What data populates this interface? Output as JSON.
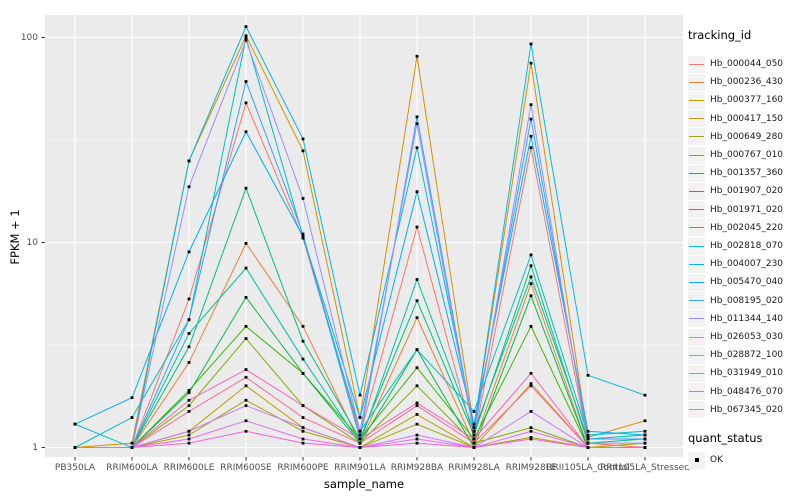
{
  "chart_data": {
    "type": "line",
    "title": "",
    "xlabel": "sample_name",
    "ylabel": "FPKM + 1",
    "y_scale": "log10",
    "y_ticks": [
      "1",
      "10",
      "100"
    ],
    "y_tick_values": [
      1,
      10,
      100
    ],
    "y_minor_values": [
      3.1623,
      31.623
    ],
    "ylim": [
      0.9,
      130
    ],
    "grid": true,
    "legend_position": "right",
    "panel_bg": "#ebebeb",
    "grid_color": "#ffffff",
    "point_color": "#000000",
    "categories": [
      "PB350LA",
      "RRIM600LA",
      "RRIM600LE",
      "RRIM600SE",
      "RRIM600PE",
      "RRIM901LA",
      "RRIM928BA",
      "RRIM928LA",
      "RRIM928LE",
      "RRII105LA_Control",
      "RRII105LA_Stressed"
    ],
    "legend_title": "tracking_id",
    "legend2_title": "quant_status",
    "quant_status_label": "OK",
    "series": [
      {
        "name": "Hb_000044_050",
        "color": "#F8766D",
        "values": [
          1.0,
          1.0,
          5.3,
          48,
          10.5,
          1.15,
          11.9,
          1.1,
          29,
          1.05,
          1.0
        ]
      },
      {
        "name": "Hb_000236_430",
        "color": "#EA8331",
        "values": [
          1.0,
          1.0,
          2.6,
          9.9,
          3.9,
          1.05,
          4.3,
          1.05,
          6.3,
          1.0,
          1.0
        ]
      },
      {
        "name": "Hb_000377_160",
        "color": "#D89000",
        "values": [
          1.0,
          1.05,
          25,
          102,
          28,
          1.4,
          81,
          1.25,
          75,
          1.12,
          1.35
        ]
      },
      {
        "name": "Hb_000417_150",
        "color": "#C09B00",
        "values": [
          1.0,
          1.0,
          1.2,
          2.0,
          1.25,
          1.0,
          1.45,
          1.0,
          2.05,
          1.0,
          1.05
        ]
      },
      {
        "name": "Hb_000649_280",
        "color": "#A3A500",
        "values": [
          1.0,
          1.0,
          1.15,
          1.7,
          1.2,
          1.0,
          1.3,
          1.0,
          1.12,
          1.0,
          1.0
        ]
      },
      {
        "name": "Hb_000767_010",
        "color": "#7CAE00",
        "values": [
          1.0,
          1.0,
          1.6,
          3.4,
          1.6,
          1.05,
          2.0,
          1.05,
          1.25,
          1.0,
          1.0
        ]
      },
      {
        "name": "Hb_001357_360",
        "color": "#39B600",
        "values": [
          1.0,
          1.0,
          1.9,
          3.9,
          2.3,
          1.1,
          2.45,
          1.1,
          3.9,
          1.0,
          1.0
        ]
      },
      {
        "name": "Hb_001907_020",
        "color": "#00BB4E",
        "values": [
          1.0,
          1.0,
          1.85,
          5.4,
          2.3,
          1.05,
          3.0,
          1.0,
          5.5,
          1.0,
          1.0
        ]
      },
      {
        "name": "Hb_001971_020",
        "color": "#00BF7D",
        "values": [
          1.0,
          1.0,
          3.1,
          18.4,
          3.3,
          1.1,
          5.2,
          1.15,
          7.7,
          1.05,
          1.1
        ]
      },
      {
        "name": "Hb_002045_220",
        "color": "#00C1A3",
        "values": [
          1.0,
          1.0,
          3.6,
          7.5,
          2.7,
          1.05,
          6.6,
          1.2,
          6.8,
          1.1,
          1.15
        ]
      },
      {
        "name": "Hb_002818_070",
        "color": "#00BFC4",
        "values": [
          1.0,
          1.4,
          4.2,
          100,
          10.7,
          1.2,
          3.0,
          1.5,
          8.7,
          1.15,
          1.2
        ]
      },
      {
        "name": "Hb_004007_230",
        "color": "#00BAE0",
        "values": [
          1.3,
          1.0,
          25,
          113,
          32,
          1.8,
          29,
          1.25,
          93,
          2.25,
          1.8
        ]
      },
      {
        "name": "Hb_005470_040",
        "color": "#00B0F6",
        "values": [
          1.3,
          1.75,
          9.0,
          34.7,
          10.7,
          1.4,
          17.7,
          1.3,
          33,
          1.2,
          1.15
        ]
      },
      {
        "name": "Hb_008195_020",
        "color": "#35A2FF",
        "values": [
          1.0,
          1.0,
          4.2,
          61,
          11,
          1.1,
          41,
          1.2,
          40,
          1.1,
          1.1
        ]
      },
      {
        "name": "Hb_011344_140",
        "color": "#9590FF",
        "values": [
          1.0,
          1.0,
          18.7,
          97,
          16.4,
          1.2,
          38,
          1.15,
          47,
          1.05,
          1.05
        ]
      },
      {
        "name": "Hb_026053_030",
        "color": "#C77CFF",
        "values": [
          1.0,
          1.0,
          1.2,
          1.6,
          1.25,
          1.0,
          1.15,
          1.0,
          1.5,
          1.0,
          1.0
        ]
      },
      {
        "name": "Hb_028872_100",
        "color": "#E76BF3",
        "values": [
          1.0,
          1.0,
          1.1,
          1.35,
          1.1,
          1.0,
          1.1,
          1.0,
          1.2,
          1.0,
          1.0
        ]
      },
      {
        "name": "Hb_031949_010",
        "color": "#FA62DB",
        "values": [
          1.0,
          1.0,
          1.05,
          1.2,
          1.05,
          1.0,
          1.05,
          1.0,
          1.1,
          1.0,
          1.0
        ]
      },
      {
        "name": "Hb_048476_070",
        "color": "#FF62BC",
        "values": [
          1.0,
          1.0,
          1.7,
          2.4,
          1.6,
          1.1,
          1.65,
          1.1,
          2.3,
          1.0,
          1.0
        ]
      },
      {
        "name": "Hb_067345_020",
        "color": "#FF6A98",
        "values": [
          1.0,
          1.0,
          1.5,
          2.2,
          1.4,
          1.05,
          1.6,
          1.05,
          2.0,
          1.0,
          1.0
        ]
      }
    ]
  }
}
